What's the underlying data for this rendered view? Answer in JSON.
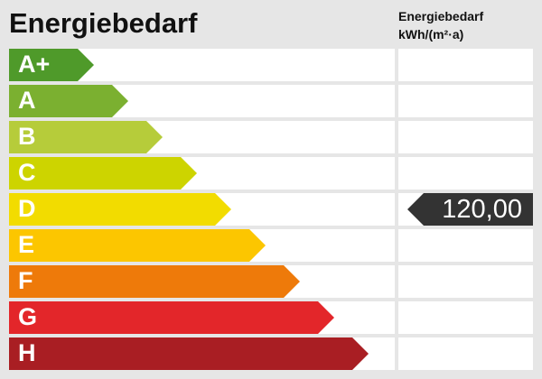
{
  "title": "Energiebedarf",
  "column_header": {
    "line1": "Energiebedarf",
    "line2": "kWh/(m²·a)"
  },
  "classes": [
    {
      "label": "A+",
      "color": "#4f9a2a"
    },
    {
      "label": "A",
      "color": "#7bb030"
    },
    {
      "label": "B",
      "color": "#b6cc3a"
    },
    {
      "label": "C",
      "color": "#cdd400"
    },
    {
      "label": "D",
      "color": "#f2dc00"
    },
    {
      "label": "E",
      "color": "#fcc600"
    },
    {
      "label": "F",
      "color": "#ee7a0a"
    },
    {
      "label": "G",
      "color": "#e3262a"
    },
    {
      "label": "H",
      "color": "#a91e23"
    }
  ],
  "indicator": {
    "value": "120,00",
    "class": "D",
    "color": "#333333"
  }
}
